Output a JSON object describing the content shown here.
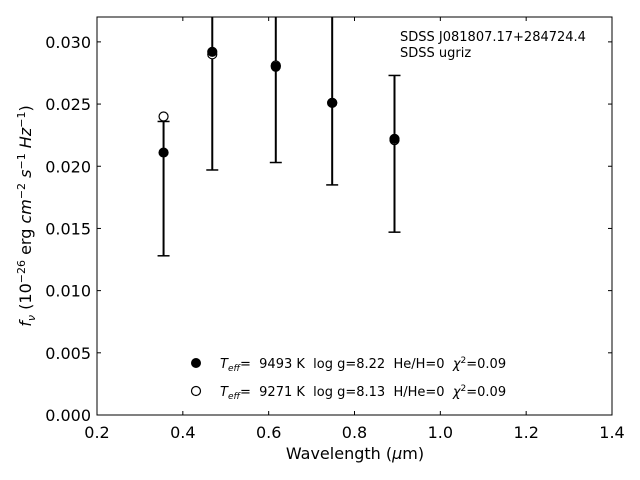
{
  "chart_data": {
    "type": "scatter",
    "xlabel": "Wavelength (μm)",
    "ylabel": "f_ν (10^-26 erg cm^-2 s^-1 Hz^-1)",
    "xlim": [
      0.2,
      1.4
    ],
    "ylim": [
      0.0,
      0.032
    ],
    "xticks": [
      0.2,
      0.4,
      0.6,
      0.8,
      1.0,
      1.2,
      1.4
    ],
    "yticks": [
      0.0,
      0.005,
      0.01,
      0.015,
      0.02,
      0.025,
      0.03
    ],
    "tick_direction": "in",
    "grid": false,
    "annotation": {
      "lines": [
        "SDSS J081807.17+284724.4",
        "SDSS ugriz"
      ],
      "placement": "top-right"
    },
    "observed": {
      "x": [
        0.3551,
        0.4686,
        0.6166,
        0.748,
        0.8932
      ],
      "y": [
        0.0211,
        0.0291,
        0.0279,
        0.0251,
        0.0221
      ],
      "yerr_low": [
        0.0083,
        0.0094,
        0.0076,
        0.0066,
        0.0074
      ],
      "yerr_high": [
        0.0025,
        0.0035,
        0.0045,
        0.0075,
        0.0052
      ]
    },
    "series": [
      {
        "name": "T_eff= 9493 K  log g=8.22  He/H=0  χ²=0.09",
        "teff_label": "T",
        "teff_sub": "eff",
        "rest": "=  9493 K  log g=8.22  He/H=0  ",
        "chi": "χ",
        "chi_sup": "2",
        "chi_rest": "=0.09",
        "marker": "filled-circle",
        "x": [
          0.3551,
          0.4686,
          0.6166,
          0.748,
          0.8932
        ],
        "y": [
          0.0211,
          0.0292,
          0.028,
          0.0251,
          0.0222
        ]
      },
      {
        "name": "T_eff= 9271 K  log g=8.13  H/He=0  χ²=0.09",
        "teff_label": "T",
        "teff_sub": "eff",
        "rest": "=  9271 K  log g=8.13  H/He=0  ",
        "chi": "χ",
        "chi_sup": "2",
        "chi_rest": "=0.09",
        "marker": "open-circle",
        "x": [
          0.3551,
          0.4686,
          0.6166,
          0.748,
          0.8932
        ],
        "y": [
          0.024,
          0.029,
          0.0281,
          0.0251,
          0.0221
        ]
      }
    ],
    "legend_placement": "bottom-center"
  }
}
